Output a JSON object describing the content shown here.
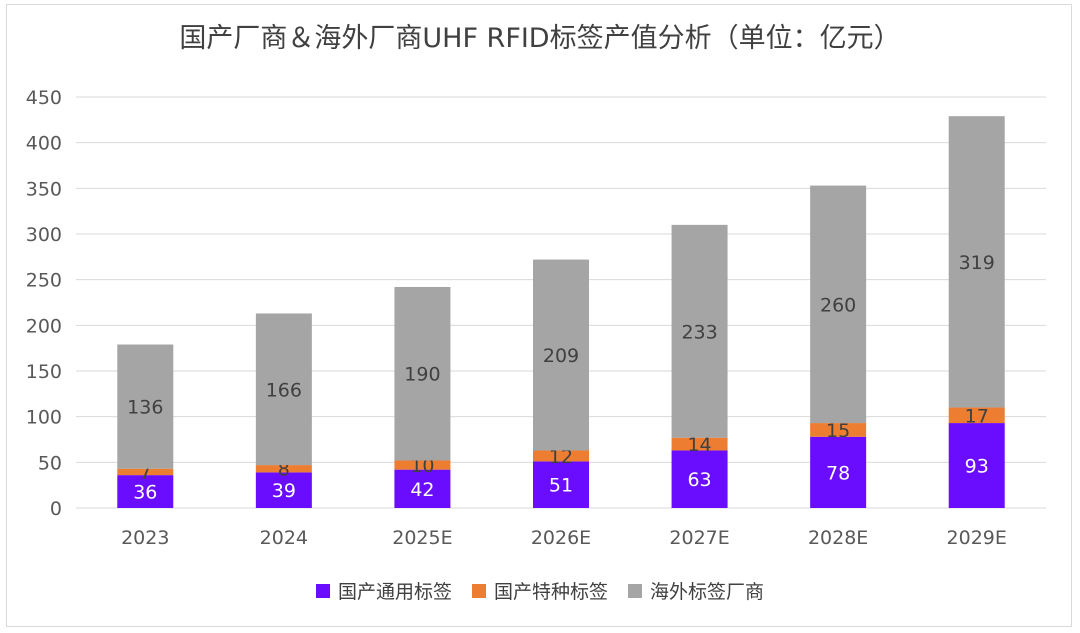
{
  "chart_data": {
    "type": "bar",
    "stacked": true,
    "title": "国产厂商＆海外厂商UHF RFID标签产值分析（单位：亿元）",
    "categories": [
      "2023",
      "2024",
      "2025E",
      "2026E",
      "2027E",
      "2028E",
      "2029E"
    ],
    "series": [
      {
        "name": "国产通用标签",
        "color": "#6a0dff",
        "values": [
          36,
          39,
          42,
          51,
          63,
          78,
          93
        ]
      },
      {
        "name": "国产特种标签",
        "color": "#ed7d31",
        "values": [
          7,
          8,
          10,
          12,
          14,
          15,
          17
        ]
      },
      {
        "name": "海外标签厂商",
        "color": "#a5a5a5",
        "values": [
          136,
          166,
          190,
          209,
          233,
          260,
          319
        ]
      }
    ],
    "ylim": [
      0,
      450
    ],
    "yticks": [
      "0",
      "50",
      "100",
      "150",
      "200",
      "250",
      "300",
      "350",
      "400",
      "450"
    ],
    "grid": true,
    "legend_position": "bottom"
  }
}
